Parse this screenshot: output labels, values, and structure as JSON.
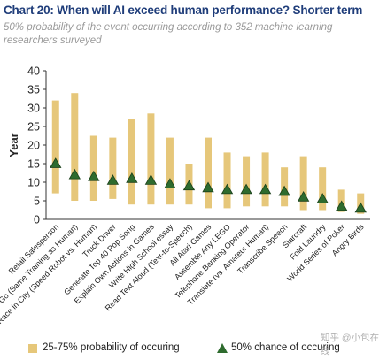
{
  "header": {
    "title": "Chart 20: When will AI exceed human performance? Shorter term",
    "subtitle": "50% probability of the event occurring according to 352 machine learning researchers surveyed"
  },
  "legend": {
    "range_label": "25-75% probability of occuring",
    "median_label": "50% chance of occuring"
  },
  "watermark": "知乎 @小包在线",
  "colors": {
    "bar": "#e6c77a",
    "marker": "#2e6b2e",
    "marker_edge": "#1a3f1a"
  },
  "chart_data": {
    "type": "bar",
    "ylabel": "Year",
    "ylim": [
      0,
      40
    ],
    "yticks": [
      0,
      5,
      10,
      15,
      20,
      25,
      30,
      35,
      40
    ],
    "grid": false,
    "legend_position": "bottom",
    "categories": [
      "Retail Salesperson",
      "Go (Same Training as Human)",
      "Race in City (Speed Robot vs. Human)",
      "Truck Driver",
      "Generate Top 40 Pop Song",
      "Explain Own Actions in Games",
      "Write High School essay",
      "Read Text Aloud (Text-to-Speech)",
      "All Atari Games",
      "Assemble Any LEGO",
      "Telephone Banking Operator",
      "Translate (vs. Amateur Human)",
      "Transcribe Speech",
      "Starcraft",
      "Fold Laundry",
      "World Series of Poker",
      "Angry Birds"
    ],
    "series": [
      {
        "name": "25-75% probability of occuring",
        "low": [
          7,
          5,
          5,
          5.5,
          4,
          4,
          4,
          4,
          3,
          3,
          3.5,
          3.5,
          3.5,
          2.5,
          2.5,
          2,
          1.5
        ],
        "high": [
          32,
          34,
          22.5,
          22,
          27,
          28.5,
          22,
          15,
          22,
          18,
          17,
          18,
          14,
          17,
          14,
          8,
          7
        ]
      },
      {
        "name": "50% chance of occuring",
        "values": [
          15,
          12,
          11.5,
          10.5,
          11,
          10.5,
          9.5,
          9,
          8.5,
          8,
          8,
          8,
          7.5,
          6,
          5.5,
          3.5,
          3
        ]
      }
    ]
  }
}
